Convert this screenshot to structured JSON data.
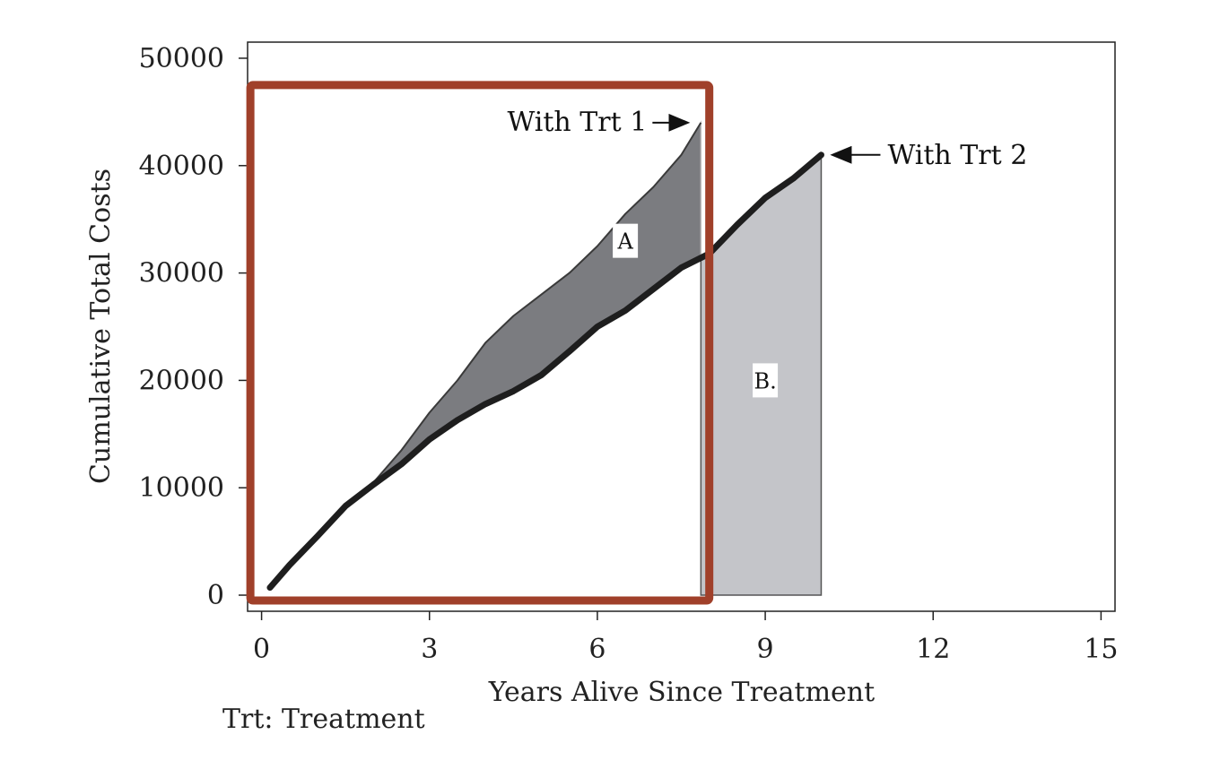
{
  "chart_data": {
    "type": "area",
    "xlabel": "Years Alive Since Treatment",
    "ylabel": "Cumulative Total Costs",
    "xlim": [
      -0.25,
      15.25
    ],
    "ylim": [
      -1500,
      51500
    ],
    "x_ticks": [
      0,
      3,
      6,
      9,
      12,
      15
    ],
    "y_ticks": [
      0,
      10000,
      20000,
      30000,
      40000,
      50000
    ],
    "grid": false,
    "series": [
      {
        "name": "With Trt 1",
        "x": [
          0.15,
          0.5,
          1.0,
          1.5,
          2.0,
          2.5,
          3.0,
          3.5,
          4.0,
          4.5,
          5.0,
          5.5,
          6.0,
          6.5,
          7.0,
          7.5,
          7.85
        ],
        "y": [
          700,
          2800,
          5500,
          8300,
          10500,
          13500,
          17000,
          20000,
          23500,
          26000,
          28000,
          30000,
          32500,
          35500,
          38000,
          41000,
          44000
        ]
      },
      {
        "name": "With Trt 2",
        "x": [
          0.15,
          0.5,
          1.0,
          1.5,
          2.0,
          2.5,
          3.0,
          3.5,
          4.0,
          4.5,
          5.0,
          5.5,
          6.0,
          6.5,
          7.0,
          7.5,
          8.0,
          8.5,
          9.0,
          9.5,
          10.0
        ],
        "y": [
          700,
          2800,
          5500,
          8300,
          10300,
          12200,
          14500,
          16300,
          17800,
          19000,
          20500,
          22700,
          25000,
          26500,
          28500,
          30500,
          31800,
          34500,
          37000,
          38800,
          41000
        ]
      }
    ],
    "regions": [
      {
        "label": "A",
        "x": 6.5,
        "y": 33000
      },
      {
        "label": "B.",
        "x": 9.0,
        "y": 20000
      }
    ],
    "annotations": [
      {
        "text": "With Trt 1",
        "x": 7.85,
        "y": 44000,
        "side": "left"
      },
      {
        "text": "With Trt 2",
        "x": 10.0,
        "y": 41000,
        "side": "right"
      }
    ],
    "footnote": "Trt: Treatment",
    "highlight_box": {
      "x0": -0.2,
      "x1": 8.0,
      "y0": -500,
      "y1": 47500,
      "color": "#a0402a"
    },
    "colors": {
      "region_a": "#7b7c80",
      "region_b": "#c4c5c9",
      "line": "#1e1e1e",
      "axis": "#222222"
    }
  }
}
